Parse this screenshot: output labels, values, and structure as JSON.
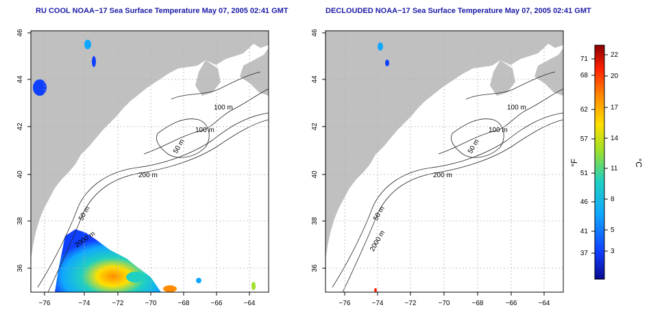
{
  "panels": [
    {
      "title": "RU COOL NOAA−17 Sea Surface Temperature May 07, 2005 02:41 GMT",
      "contour_labels": [
        "100 m",
        "100 m",
        "50 m",
        "200 m",
        "50 m",
        "2000 m"
      ]
    },
    {
      "title": "DECLOUDED NOAA−17 Sea Surface Temperature May 07, 2005 02:41 GMT",
      "contour_labels": [
        "100 m",
        "100 m",
        "50 m",
        "200 m",
        "50 m",
        "2000 m"
      ]
    }
  ],
  "axes": {
    "x_ticks": [
      "−76",
      "−74",
      "−72",
      "−70",
      "−68",
      "−66",
      "−64"
    ],
    "y_ticks": [
      "36",
      "38",
      "40",
      "42",
      "44",
      "46"
    ]
  },
  "colorbar": {
    "fahrenheit_label": "°F",
    "celsius_label": "°C",
    "fahrenheit_ticks": [
      "71",
      "68",
      "62",
      "57",
      "51",
      "46",
      "41",
      "37"
    ],
    "celsius_ticks": [
      "22",
      "20",
      "17",
      "14",
      "11",
      "8",
      "5",
      "3"
    ],
    "colors": [
      "#8b0000",
      "#ff2000",
      "#ff8c00",
      "#ffe000",
      "#9ee02a",
      "#20d0c0",
      "#10a8ff",
      "#1040ff",
      "#0a0a90"
    ]
  },
  "colors": {
    "land": "#c0c0c0",
    "title": "#1a1aa6",
    "grid": "#b0b0b0"
  }
}
